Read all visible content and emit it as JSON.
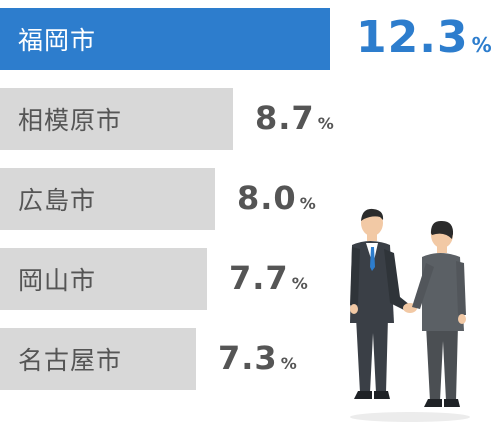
{
  "chart_data": {
    "type": "bar",
    "orientation": "horizontal",
    "categories": [
      "福岡市",
      "相模原市",
      "広島市",
      "岡山市",
      "名古屋市"
    ],
    "values": [
      12.3,
      8.7,
      8.0,
      7.7,
      7.3
    ],
    "value_labels": [
      "12.3",
      "8.7",
      "8.0",
      "7.7",
      "7.3"
    ],
    "unit": "%",
    "highlight_index": 0,
    "colors": {
      "highlight_bar": "#2d7dcd",
      "bar": "#d8d8d8",
      "highlight_text": "#ffffff",
      "label_text": "#555555",
      "highlight_value": "#2d7dcd",
      "value_text": "#555555"
    }
  },
  "illustration": {
    "icon": "handshake-businessmen-icon"
  }
}
